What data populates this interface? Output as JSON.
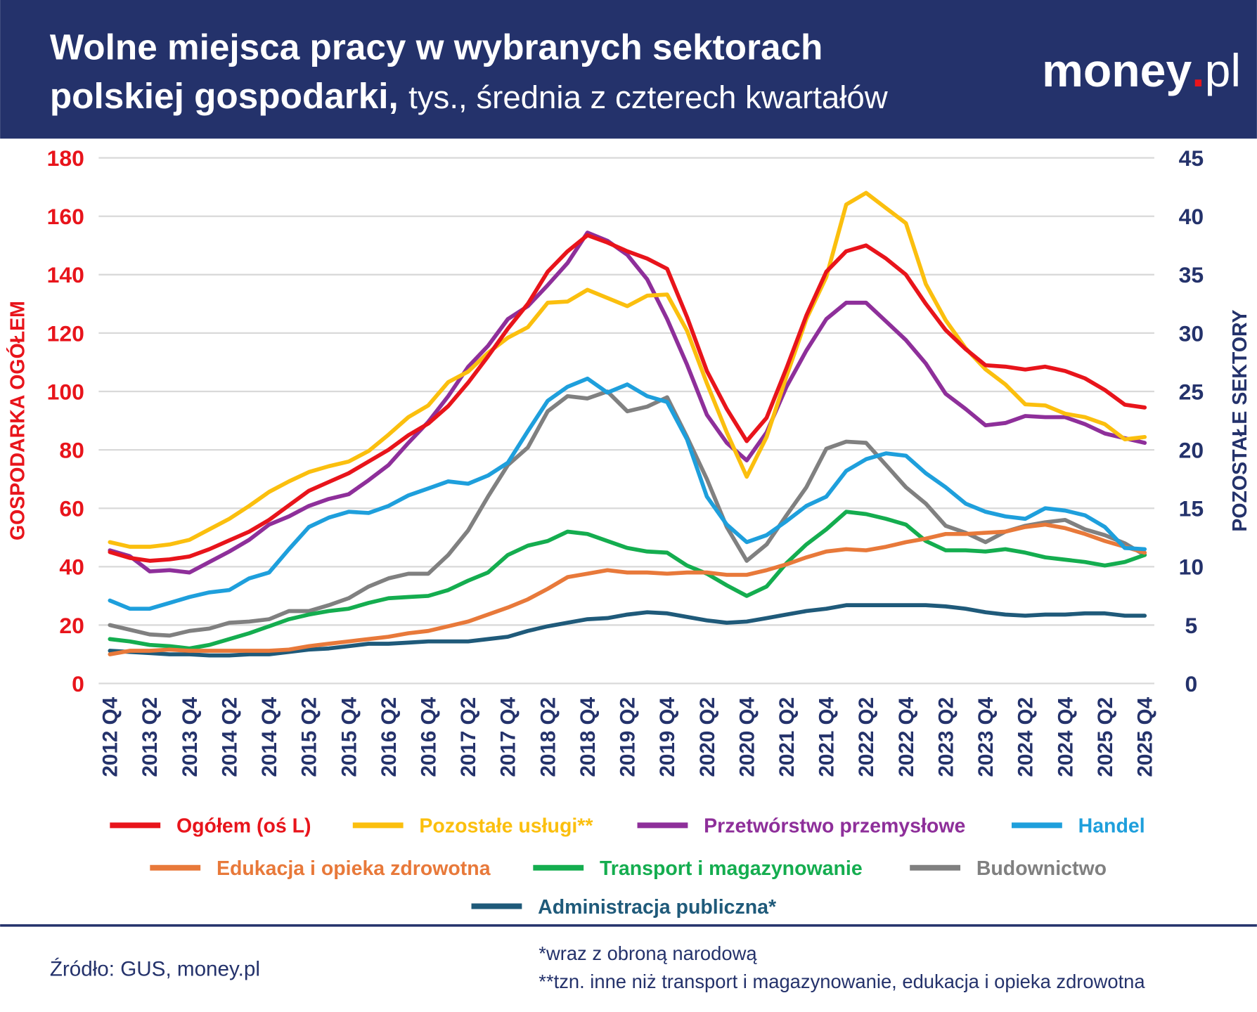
{
  "header": {
    "title": [
      "Wolne miejsca pracy w wybranych sektorach",
      "polskiej gospodarki,"
    ],
    "subtitle": "tys., średnia z czterech kwartałów",
    "logo": [
      "money",
      ".",
      "pl"
    ]
  },
  "chart_data": {
    "type": "line",
    "y_label": "GOSPODARKA OGÓŁEM",
    "y2_label": "POZOSTAŁE SEKTORY",
    "categories": [
      "2012 Q4",
      null,
      "2013 Q2",
      null,
      "2013 Q4",
      null,
      "2014 Q2",
      null,
      "2014 Q4",
      null,
      "2015 Q2",
      null,
      "2015 Q4",
      null,
      "2016 Q2",
      null,
      "2016 Q4",
      null,
      "2017 Q2",
      null,
      "2017 Q4",
      null,
      "2018 Q2",
      null,
      "2018 Q4",
      null,
      "2019 Q2",
      null,
      "2019 Q4",
      null,
      "2020 Q2",
      null,
      "2020 Q4",
      null,
      "2021 Q2",
      null,
      "2021 Q4",
      null,
      "2022 Q2",
      null,
      "2022 Q4",
      null,
      "2023 Q2",
      null,
      "2023 Q4",
      null,
      "2024 Q2",
      null,
      "2024 Q4",
      null,
      "2025 Q2",
      null,
      "2025 Q4"
    ],
    "ylim": [
      0,
      180
    ],
    "yticks": [
      0,
      20,
      40,
      60,
      80,
      100,
      120,
      140,
      160,
      180
    ],
    "y2lim": [
      0,
      45
    ],
    "y2ticks": [
      0,
      5,
      10,
      15,
      20,
      25,
      30,
      35,
      40,
      45
    ],
    "grid": true,
    "series": [
      {
        "name": "Ogółem (oś L)",
        "color": "#e8141b",
        "axis": "y",
        "values": [
          45,
          43,
          42,
          42.5,
          43.5,
          46,
          49,
          52,
          56,
          61,
          66,
          69,
          72,
          76,
          80,
          85,
          89,
          95,
          103,
          112,
          121.5,
          130,
          141,
          148,
          153.5,
          151,
          148,
          145.5,
          142,
          125.5,
          107,
          94,
          83,
          91,
          108,
          126,
          141,
          148,
          150,
          145.5,
          140,
          130,
          121,
          114.5,
          109,
          108.5,
          107.5,
          108.5,
          107,
          104.5,
          100.5,
          95.5,
          94.5
        ]
      },
      {
        "name": "Pozostałe usługi**",
        "color": "#fbbf0e",
        "axis": "y2",
        "values": [
          12.1,
          11.7,
          11.7,
          11.9,
          12.3,
          13.2,
          14.1,
          15.2,
          16.4,
          17.3,
          18.1,
          18.6,
          19.0,
          19.9,
          21.3,
          22.8,
          23.8,
          25.8,
          26.7,
          28.3,
          29.6,
          30.5,
          32.6,
          32.7,
          33.7,
          33.0,
          32.3,
          33.2,
          33.3,
          30.2,
          25.7,
          21.5,
          17.7,
          21.1,
          26.3,
          31.2,
          34.8,
          41.0,
          42.0,
          40.7,
          39.4,
          34.2,
          31.1,
          28.7,
          26.9,
          25.6,
          23.9,
          23.8,
          23.1,
          22.8,
          22.2,
          20.9,
          21.1
        ]
      },
      {
        "name": "Przetwórstwo przemysłowe",
        "color": "#8e2f9a",
        "axis": "y2",
        "values": [
          11.4,
          10.9,
          9.6,
          9.7,
          9.5,
          10.4,
          11.3,
          12.3,
          13.6,
          14.3,
          15.2,
          15.8,
          16.2,
          17.4,
          18.7,
          20.6,
          22.4,
          24.6,
          27.1,
          28.9,
          31.2,
          32.3,
          34.1,
          36.0,
          38.6,
          37.9,
          36.7,
          34.6,
          31.2,
          27.3,
          23.0,
          20.6,
          19.1,
          21.5,
          25.4,
          28.5,
          31.2,
          32.6,
          32.6,
          31.0,
          29.4,
          27.4,
          24.8,
          23.5,
          22.1,
          22.3,
          22.9,
          22.8,
          22.8,
          22.2,
          21.4,
          21.0,
          20.6
        ]
      },
      {
        "name": "Handel",
        "color": "#1e9fdc",
        "axis": "y2",
        "values": [
          7.1,
          6.4,
          6.4,
          6.9,
          7.4,
          7.8,
          8.0,
          9.0,
          9.5,
          11.5,
          13.4,
          14.2,
          14.7,
          14.6,
          15.2,
          16.1,
          16.7,
          17.3,
          17.1,
          17.8,
          18.9,
          21.6,
          24.2,
          25.4,
          26.1,
          24.9,
          25.6,
          24.6,
          24.1,
          20.9,
          16.0,
          13.6,
          12.1,
          12.7,
          13.9,
          15.2,
          16.0,
          18.2,
          19.2,
          19.7,
          19.5,
          18.0,
          16.8,
          15.4,
          14.7,
          14.3,
          14.1,
          15.0,
          14.8,
          14.4,
          13.4,
          11.6,
          11.5
        ]
      },
      {
        "name": "Edukacja i opieka zdrowotna",
        "color": "#e8793a",
        "axis": "y2",
        "values": [
          2.5,
          2.8,
          2.8,
          2.9,
          2.8,
          2.8,
          2.8,
          2.8,
          2.8,
          2.9,
          3.2,
          3.4,
          3.6,
          3.8,
          4.0,
          4.3,
          4.5,
          4.9,
          5.3,
          5.9,
          6.5,
          7.2,
          8.1,
          9.1,
          9.4,
          9.7,
          9.5,
          9.5,
          9.4,
          9.5,
          9.5,
          9.3,
          9.3,
          9.7,
          10.2,
          10.8,
          11.3,
          11.5,
          11.4,
          11.7,
          12.1,
          12.4,
          12.8,
          12.8,
          12.9,
          13.0,
          13.4,
          13.6,
          13.3,
          12.8,
          12.2,
          11.7,
          11.2
        ]
      },
      {
        "name": "Transport i magazynowanie",
        "color": "#14ad4f",
        "axis": "y2",
        "values": [
          3.8,
          3.6,
          3.3,
          3.2,
          3.0,
          3.3,
          3.8,
          4.3,
          4.9,
          5.5,
          5.9,
          6.2,
          6.4,
          6.9,
          7.3,
          7.4,
          7.5,
          8.0,
          8.8,
          9.5,
          11.0,
          11.8,
          12.2,
          13.0,
          12.8,
          12.2,
          11.6,
          11.3,
          11.2,
          10.1,
          9.4,
          8.4,
          7.5,
          8.3,
          10.3,
          11.9,
          13.2,
          14.7,
          14.5,
          14.1,
          13.6,
          12.2,
          11.4,
          11.4,
          11.3,
          11.5,
          11.2,
          10.8,
          10.6,
          10.4,
          10.1,
          10.4,
          11.0
        ]
      },
      {
        "name": "Budownictwo",
        "color": "#808080",
        "axis": "y2",
        "values": [
          5.0,
          4.6,
          4.2,
          4.1,
          4.5,
          4.7,
          5.2,
          5.3,
          5.5,
          6.2,
          6.2,
          6.7,
          7.3,
          8.3,
          9.0,
          9.4,
          9.4,
          11.0,
          13.1,
          16.0,
          18.7,
          20.2,
          23.3,
          24.6,
          24.4,
          25.0,
          23.3,
          23.7,
          24.5,
          21.1,
          17.5,
          13.4,
          10.5,
          11.9,
          14.4,
          16.8,
          20.1,
          20.7,
          20.6,
          18.7,
          16.8,
          15.4,
          13.5,
          12.9,
          12.1,
          13.0,
          13.5,
          13.8,
          14.0,
          13.2,
          12.7,
          12.0,
          11.0
        ]
      },
      {
        "name": "Administracja publiczna*",
        "color": "#1f5a7a",
        "axis": "y2",
        "values": [
          2.8,
          2.7,
          2.6,
          2.5,
          2.5,
          2.4,
          2.4,
          2.5,
          2.5,
          2.7,
          2.9,
          3.0,
          3.2,
          3.4,
          3.4,
          3.5,
          3.6,
          3.6,
          3.6,
          3.8,
          4.0,
          4.5,
          4.9,
          5.2,
          5.5,
          5.6,
          5.9,
          6.1,
          6.0,
          5.7,
          5.4,
          5.2,
          5.3,
          5.6,
          5.9,
          6.2,
          6.4,
          6.7,
          6.7,
          6.7,
          6.7,
          6.7,
          6.6,
          6.4,
          6.1,
          5.9,
          5.8,
          5.9,
          5.9,
          6.0,
          6.0,
          5.8,
          5.8
        ]
      }
    ]
  },
  "footer": {
    "source": "Źródło: GUS, money.pl",
    "notes": [
      "*wraz z obroną narodową",
      "**tzn. inne niż transport i magazynowanie, edukacja i opieka zdrowotna"
    ]
  }
}
